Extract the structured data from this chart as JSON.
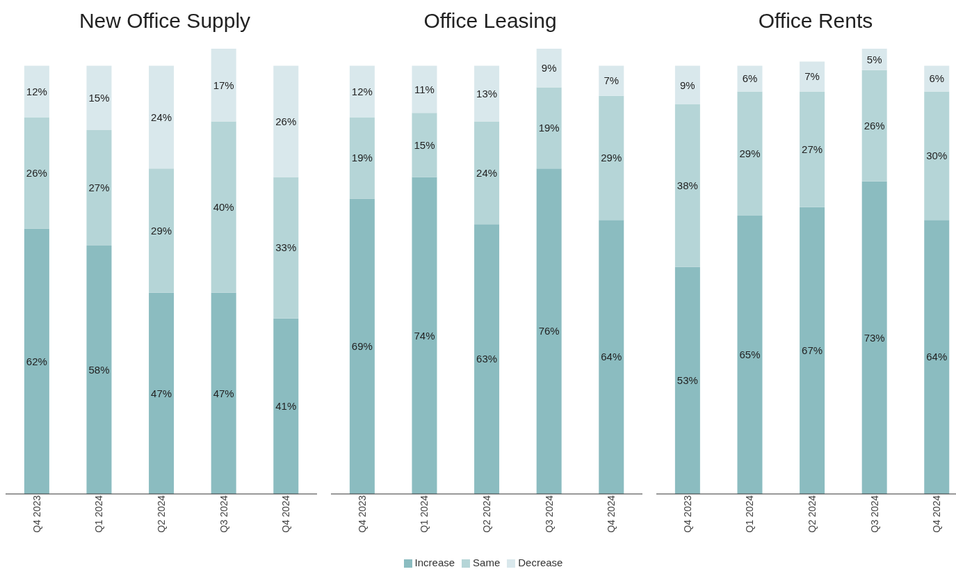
{
  "chart_data": [
    {
      "type": "bar",
      "title": "New Office Supply",
      "stacked": true,
      "categories": [
        "Q4 2023",
        "Q1 2024",
        "Q2 2024",
        "Q3 2024",
        "Q4 2024"
      ],
      "series": [
        {
          "color": "#8bbcc0",
          "values": [
            62,
            58,
            47,
            47,
            41
          ],
          "value_labels": [
            "62%",
            "58%",
            "47%",
            "47%",
            "41%"
          ]
        },
        {
          "color": "#b5d5d7",
          "values": [
            26,
            27,
            29,
            40,
            33
          ],
          "value_labels": [
            "26%",
            "27%",
            "29%",
            "40%",
            "33%"
          ]
        },
        {
          "color": "#d9e8ec",
          "values": [
            12,
            15,
            24,
            17,
            26
          ],
          "value_labels": [
            "12%",
            "15%",
            "24%",
            "17%",
            "26%"
          ]
        }
      ]
    },
    {
      "type": "bar",
      "title": "Office Leasing",
      "stacked": true,
      "legend": "bottom",
      "categories": [
        "Q4 2023",
        "Q1 2024",
        "Q2 2024",
        "Q3 2024",
        "Q4 2024"
      ],
      "series": [
        {
          "name": "Increase",
          "color": "#8bbcc0",
          "values": [
            69,
            74,
            63,
            76,
            64
          ],
          "value_labels": [
            "69%",
            "74%",
            "63%",
            "76%",
            "64%"
          ]
        },
        {
          "name": "Same",
          "color": "#b5d5d7",
          "values": [
            19,
            15,
            24,
            19,
            29
          ],
          "value_labels": [
            "19%",
            "15%",
            "24%",
            "19%",
            "29%"
          ]
        },
        {
          "name": "Decrease",
          "color": "#d9e8ec",
          "values": [
            12,
            11,
            13,
            9,
            7
          ],
          "value_labels": [
            "12%",
            "11%",
            "13%",
            "9%",
            "7%"
          ]
        }
      ]
    },
    {
      "type": "bar",
      "title": "Office Rents",
      "stacked": true,
      "categories": [
        "Q4 2023",
        "Q1 2024",
        "Q2 2024",
        "Q3 2024",
        "Q4 2024"
      ],
      "series": [
        {
          "color": "#8bbcc0",
          "values": [
            53,
            65,
            67,
            73,
            64
          ],
          "value_labels": [
            "53%",
            "65%",
            "67%",
            "73%",
            "64%"
          ]
        },
        {
          "color": "#b5d5d7",
          "values": [
            38,
            29,
            27,
            26,
            30
          ],
          "value_labels": [
            "38%",
            "29%",
            "27%",
            "26%",
            "30%"
          ]
        },
        {
          "color": "#d9e8ec",
          "values": [
            9,
            6,
            7,
            5,
            6
          ],
          "value_labels": [
            "9%",
            "6%",
            "7%",
            "5%",
            "6%"
          ]
        }
      ]
    }
  ]
}
